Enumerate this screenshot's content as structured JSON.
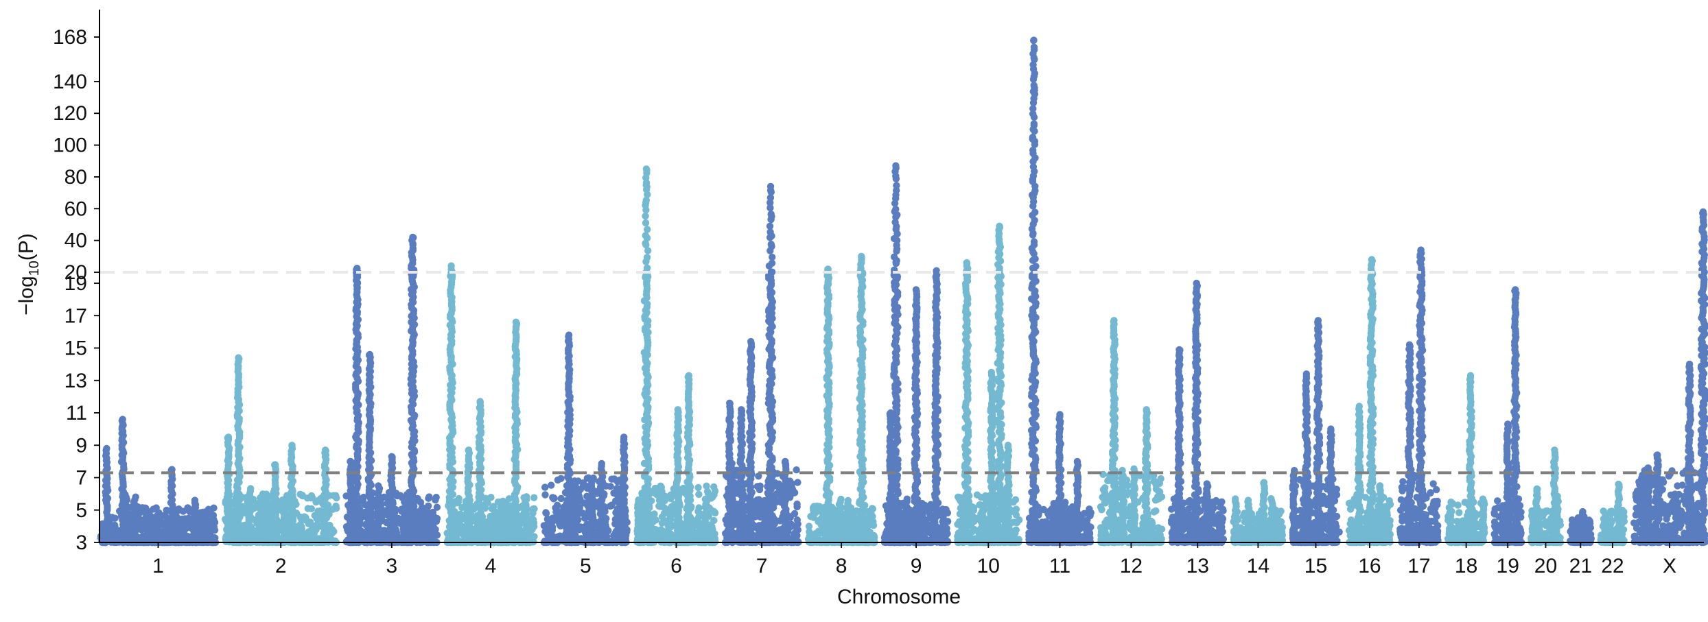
{
  "chart_data": {
    "type": "scatter",
    "subtype": "manhattan",
    "title": "",
    "xlabel": "Chromosome",
    "ylabel_parts": [
      "−log",
      "10",
      "(P)"
    ],
    "y_axis": {
      "lower_range": [
        3,
        19.5
      ],
      "upper_range": [
        20,
        175
      ],
      "axis_break_at": 20,
      "tick_values": [
        3,
        5,
        7,
        9,
        11,
        13,
        15,
        17,
        19,
        20,
        40,
        60,
        80,
        100,
        120,
        140,
        168
      ],
      "tick_labels": [
        "3",
        "5",
        "7",
        "9",
        "11",
        "13",
        "15",
        "17",
        "19",
        "20",
        "40",
        "60",
        "80",
        "100",
        "120",
        "140",
        "168"
      ]
    },
    "genome_wide_significance": 7.3,
    "break_line_value": 20,
    "colors": {
      "dark": "#5a7dc0",
      "light": "#74b9d2",
      "threshold": "#7f7f7f",
      "break_line": "#e8e8e8"
    },
    "chromosomes": [
      {
        "label": "1",
        "size": 249,
        "base_max": 5.2,
        "color": "dark",
        "peaks": [
          {
            "pos": 0.05,
            "max": 8.8
          },
          {
            "pos": 0.19,
            "max": 10.6
          },
          {
            "pos": 0.62,
            "max": 7.5
          },
          {
            "pos": 0.82,
            "max": 5.6
          }
        ]
      },
      {
        "label": "2",
        "size": 242,
        "base_max": 6.0,
        "color": "light",
        "peaks": [
          {
            "pos": 0.03,
            "max": 9.5
          },
          {
            "pos": 0.12,
            "max": 14.4
          },
          {
            "pos": 0.45,
            "max": 7.8
          },
          {
            "pos": 0.6,
            "max": 9.0
          },
          {
            "pos": 0.9,
            "max": 8.7
          }
        ]
      },
      {
        "label": "3",
        "size": 198,
        "base_max": 6.2,
        "color": "dark",
        "peaks": [
          {
            "pos": 0.05,
            "max": 8.0
          },
          {
            "pos": 0.12,
            "max": 22.5
          },
          {
            "pos": 0.26,
            "max": 14.6
          },
          {
            "pos": 0.5,
            "max": 8.3
          },
          {
            "pos": 0.73,
            "max": 42.0
          }
        ]
      },
      {
        "label": "4",
        "size": 190,
        "base_max": 5.8,
        "color": "light",
        "peaks": [
          {
            "pos": 0.05,
            "max": 24.0
          },
          {
            "pos": 0.25,
            "max": 8.7
          },
          {
            "pos": 0.38,
            "max": 11.7
          },
          {
            "pos": 0.79,
            "max": 16.6
          }
        ]
      },
      {
        "label": "5",
        "size": 181,
        "base_max": 7.0,
        "color": "dark",
        "peaks": [
          {
            "pos": 0.3,
            "max": 15.8
          },
          {
            "pos": 0.58,
            "max": 6.8
          },
          {
            "pos": 0.96,
            "max": 9.5
          }
        ]
      },
      {
        "label": "6",
        "size": 171,
        "base_max": 6.5,
        "color": "light",
        "peaks": [
          {
            "pos": 0.12,
            "max": 85.0
          },
          {
            "pos": 0.52,
            "max": 11.2
          },
          {
            "pos": 0.66,
            "max": 13.3
          }
        ]
      },
      {
        "label": "7",
        "size": 159,
        "base_max": 7.5,
        "color": "dark",
        "peaks": [
          {
            "pos": 0.06,
            "max": 11.6
          },
          {
            "pos": 0.22,
            "max": 11.2
          },
          {
            "pos": 0.35,
            "max": 15.4
          },
          {
            "pos": 0.62,
            "max": 74.0
          },
          {
            "pos": 0.82,
            "max": 8.0
          }
        ]
      },
      {
        "label": "8",
        "size": 145,
        "base_max": 5.3,
        "color": "light",
        "peaks": [
          {
            "pos": 0.3,
            "max": 22.0
          },
          {
            "pos": 0.8,
            "max": 30.0
          }
        ]
      },
      {
        "label": "9",
        "size": 138,
        "base_max": 5.5,
        "color": "dark",
        "peaks": [
          {
            "pos": 0.1,
            "max": 11.0
          },
          {
            "pos": 0.18,
            "max": 87.0
          },
          {
            "pos": 0.5,
            "max": 18.6
          },
          {
            "pos": 0.82,
            "max": 21.0
          }
        ]
      },
      {
        "label": "10",
        "size": 134,
        "base_max": 6.0,
        "color": "light",
        "peaks": [
          {
            "pos": 0.15,
            "max": 26.0
          },
          {
            "pos": 0.55,
            "max": 13.5
          },
          {
            "pos": 0.68,
            "max": 49.0
          },
          {
            "pos": 0.82,
            "max": 9.0
          }
        ]
      },
      {
        "label": "11",
        "size": 135,
        "base_max": 5.2,
        "color": "dark",
        "peaks": [
          {
            "pos": 0.08,
            "max": 166.0
          },
          {
            "pos": 0.5,
            "max": 10.9
          },
          {
            "pos": 0.78,
            "max": 8.0
          }
        ]
      },
      {
        "label": "12",
        "size": 133,
        "base_max": 7.2,
        "color": "light",
        "peaks": [
          {
            "pos": 0.22,
            "max": 16.7
          },
          {
            "pos": 0.75,
            "max": 11.2
          }
        ]
      },
      {
        "label": "13",
        "size": 114,
        "base_max": 5.8,
        "color": "dark",
        "peaks": [
          {
            "pos": 0.15,
            "max": 14.9
          },
          {
            "pos": 0.48,
            "max": 19.0
          },
          {
            "pos": 0.68,
            "max": 6.0
          }
        ]
      },
      {
        "label": "14",
        "size": 107,
        "base_max": 5.0,
        "color": "light",
        "peaks": [
          {
            "pos": 0.3,
            "max": 5.6
          },
          {
            "pos": 0.62,
            "max": 6.7
          }
        ]
      },
      {
        "label": "15",
        "size": 102,
        "base_max": 7.0,
        "color": "dark",
        "peaks": [
          {
            "pos": 0.3,
            "max": 13.4
          },
          {
            "pos": 0.55,
            "max": 16.7
          },
          {
            "pos": 0.82,
            "max": 10.0
          }
        ]
      },
      {
        "label": "16",
        "size": 90,
        "base_max": 6.0,
        "color": "light",
        "peaks": [
          {
            "pos": 0.25,
            "max": 11.4
          },
          {
            "pos": 0.55,
            "max": 28.0
          },
          {
            "pos": 0.75,
            "max": 6.5
          }
        ]
      },
      {
        "label": "17",
        "size": 83,
        "base_max": 7.2,
        "color": "dark",
        "peaks": [
          {
            "pos": 0.25,
            "max": 15.2
          },
          {
            "pos": 0.55,
            "max": 34.0
          }
        ]
      },
      {
        "label": "18",
        "size": 80,
        "base_max": 5.5,
        "color": "light",
        "peaks": [
          {
            "pos": 0.62,
            "max": 13.3
          }
        ]
      },
      {
        "label": "19",
        "size": 59,
        "base_max": 5.8,
        "color": "dark",
        "peaks": [
          {
            "pos": 0.5,
            "max": 10.3
          },
          {
            "pos": 0.78,
            "max": 18.6
          }
        ]
      },
      {
        "label": "20",
        "size": 64,
        "base_max": 5.0,
        "color": "light",
        "peaks": [
          {
            "pos": 0.2,
            "max": 6.3
          },
          {
            "pos": 0.8,
            "max": 8.7
          }
        ]
      },
      {
        "label": "21",
        "size": 46,
        "base_max": 4.4,
        "color": "dark",
        "peaks": [
          {
            "pos": 0.6,
            "max": 4.9
          }
        ]
      },
      {
        "label": "22",
        "size": 51,
        "base_max": 5.0,
        "color": "light",
        "peaks": [
          {
            "pos": 0.75,
            "max": 6.6
          }
        ]
      },
      {
        "label": "X",
        "size": 155,
        "base_max": 7.5,
        "color": "dark",
        "peaks": [
          {
            "pos": 0.2,
            "max": 7.6
          },
          {
            "pos": 0.33,
            "max": 8.4
          },
          {
            "pos": 0.78,
            "max": 14.0
          },
          {
            "pos": 0.97,
            "max": 58.0
          }
        ]
      }
    ]
  }
}
